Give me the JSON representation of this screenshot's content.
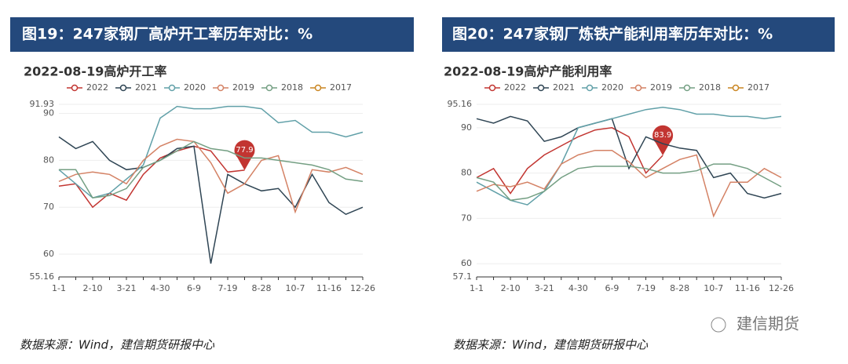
{
  "figures": [
    {
      "header": "图19：247家钢厂高炉开工率历年对比：%"
    },
    {
      "header": "图20：247家钢厂炼铁产能利用率历年对比：%"
    }
  ],
  "source": "数据来源：Wind，建信期货研报中心",
  "watermark": "建信期货",
  "chart_data": [
    {
      "type": "line",
      "title": "2022-08-19高炉开工率",
      "categories": [
        "1-1",
        null,
        "2-10",
        null,
        "3-21",
        null,
        "4-30",
        null,
        "6-9",
        null,
        "7-19",
        null,
        "8-28",
        null,
        "10-7",
        null,
        "11-16",
        null,
        "12-26"
      ],
      "ylim": [
        55.16,
        91.93
      ],
      "yticks": [
        55.16,
        60,
        70,
        80,
        90,
        91.93
      ],
      "grid": true,
      "series": [
        {
          "name": "2022",
          "color": "#c23531",
          "values": [
            74.5,
            75,
            70,
            73,
            71.5,
            77,
            80.5,
            82,
            83,
            82,
            77.5,
            77.9,
            null,
            null,
            null,
            null,
            null,
            null,
            null
          ],
          "value_labels": [
            null,
            null,
            null,
            null,
            null,
            null,
            null,
            null,
            null,
            null,
            null,
            "77.9",
            null,
            null,
            null,
            null,
            null,
            null,
            null
          ]
        },
        {
          "name": "2021",
          "color": "#2f4554",
          "values": [
            85,
            82.5,
            84,
            80,
            78,
            78.5,
            80,
            82.5,
            83,
            58,
            77,
            75,
            73.5,
            74,
            70,
            77,
            71,
            68.5,
            70
          ]
        },
        {
          "name": "2020",
          "color": "#61a0a8",
          "values": [
            78,
            75,
            72,
            73,
            76,
            79,
            89,
            91.5,
            91,
            91,
            91.5,
            91.5,
            91,
            88,
            88.5,
            86,
            86,
            85,
            86
          ]
        },
        {
          "name": "2019",
          "color": "#d48265",
          "values": [
            75.5,
            77,
            77.5,
            77,
            75,
            80,
            83,
            84.5,
            84,
            79.5,
            73,
            75,
            80,
            81,
            69,
            78,
            77.5,
            78.5,
            77
          ]
        },
        {
          "name": "2018",
          "color": "#749f83",
          "values": [
            78,
            78,
            72,
            72.5,
            74,
            78.5,
            80,
            82,
            84,
            82.5,
            82,
            80.5,
            80.5,
            80,
            79.5,
            79,
            78,
            76,
            75.5
          ]
        },
        {
          "name": "2017",
          "color": "#ca8622",
          "values": [
            null,
            null,
            null,
            null,
            null,
            null,
            null,
            null,
            null,
            null,
            null,
            null,
            null,
            null,
            null,
            null,
            null,
            null,
            null
          ]
        }
      ]
    },
    {
      "type": "line",
      "title": "2022-08-19高炉产能利用率",
      "categories": [
        "1-1",
        null,
        "2-10",
        null,
        "3-21",
        null,
        "4-30",
        null,
        "6-9",
        null,
        "7-19",
        null,
        "8-28",
        null,
        "10-7",
        null,
        "11-16",
        null,
        "12-26"
      ],
      "ylim": [
        57.1,
        95.16
      ],
      "yticks": [
        57.1,
        60,
        70,
        80,
        90,
        95.16
      ],
      "grid": true,
      "series": [
        {
          "name": "2022",
          "color": "#c23531",
          "values": [
            79,
            81,
            75.5,
            81,
            84,
            86,
            88,
            89.5,
            90,
            88,
            80,
            83.9,
            null,
            null,
            null,
            null,
            null,
            null,
            null
          ],
          "value_labels": [
            null,
            null,
            null,
            null,
            null,
            null,
            null,
            null,
            null,
            null,
            null,
            "83.9",
            null,
            null,
            null,
            null,
            null,
            null,
            null
          ]
        },
        {
          "name": "2021",
          "color": "#2f4554",
          "values": [
            92,
            91,
            92.5,
            91.5,
            87,
            88,
            90,
            91,
            92,
            81,
            88,
            86.5,
            85.5,
            85,
            79,
            80,
            75.5,
            74.5,
            75.5
          ]
        },
        {
          "name": "2020",
          "color": "#61a0a8",
          "values": [
            78,
            76,
            74,
            73,
            76,
            82,
            90,
            91,
            92,
            93,
            94,
            94.5,
            94,
            93,
            93,
            92.5,
            92.5,
            92,
            92.5
          ]
        },
        {
          "name": "2019",
          "color": "#d48265",
          "values": [
            76,
            77.5,
            77,
            78,
            76.5,
            82,
            84,
            85,
            85,
            82.5,
            79,
            81,
            83,
            84,
            70.5,
            78,
            78,
            81,
            79
          ]
        },
        {
          "name": "2018",
          "color": "#749f83",
          "values": [
            79,
            78,
            74,
            74.5,
            76,
            79,
            81,
            81.5,
            81.5,
            81.5,
            81,
            80,
            80,
            80.5,
            82,
            82,
            81,
            79,
            77
          ]
        },
        {
          "name": "2017",
          "color": "#ca8622",
          "values": [
            null,
            null,
            null,
            null,
            null,
            null,
            null,
            null,
            null,
            null,
            null,
            null,
            null,
            null,
            null,
            null,
            null,
            null,
            null
          ]
        }
      ]
    }
  ]
}
